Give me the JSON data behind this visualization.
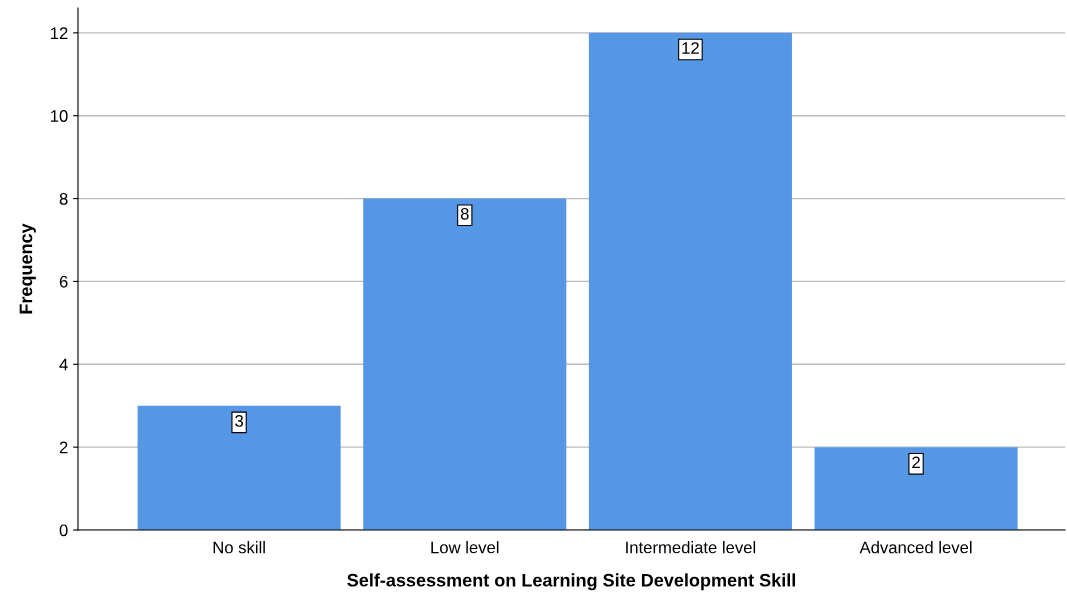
{
  "chart_data": {
    "type": "bar",
    "xlabel": "Self-assessment on Learning Site Development Skill",
    "ylabel": "Frequency",
    "categories": [
      "No skill",
      "Low level",
      "Intermediate level",
      "Advanced level"
    ],
    "values": [
      3,
      8,
      12,
      2
    ],
    "color": "#5596e5",
    "ylim": [
      0,
      12.6
    ],
    "yticks": [
      0,
      2,
      4,
      6,
      8,
      10,
      12
    ],
    "grid": "y",
    "data_labels": true
  }
}
